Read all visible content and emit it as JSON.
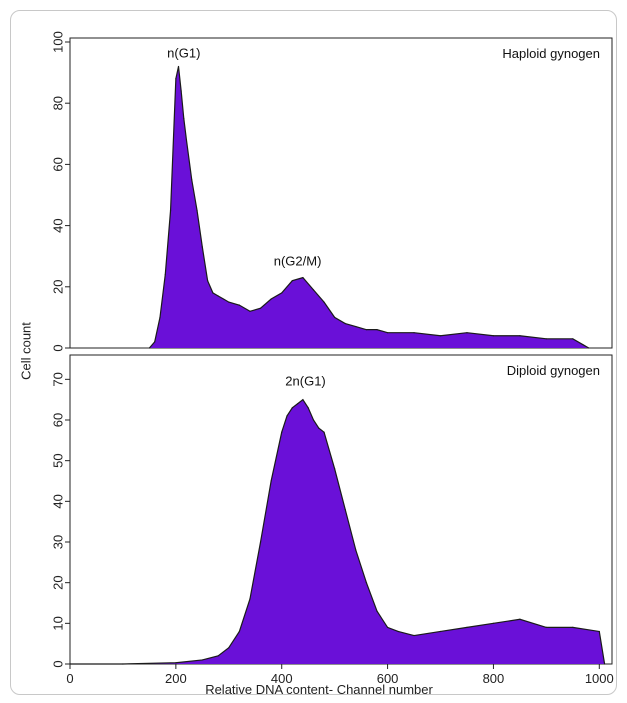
{
  "chart_data": [
    {
      "type": "area",
      "panel": "top",
      "panel_label": "Haploid gynogen",
      "ylabel": "",
      "xlabel": "",
      "xlim": [
        0,
        1024
      ],
      "ylim": [
        0,
        100
      ],
      "yticks": [
        0,
        20,
        40,
        60,
        80,
        100
      ],
      "fill_color": "#6a10d8",
      "outline_color": "#1a1a1a",
      "annotations": [
        {
          "text": "n(G1)",
          "x": 215,
          "y": 93
        },
        {
          "text": "n(G2/M)",
          "x": 430,
          "y": 25
        }
      ],
      "x": [
        150,
        160,
        170,
        180,
        190,
        200,
        205,
        210,
        215,
        220,
        230,
        240,
        250,
        260,
        270,
        280,
        290,
        300,
        320,
        340,
        360,
        380,
        400,
        420,
        440,
        460,
        480,
        500,
        520,
        540,
        560,
        580,
        600,
        650,
        700,
        750,
        800,
        850,
        900,
        950,
        970,
        980
      ],
      "values": [
        0,
        2,
        10,
        24,
        45,
        88,
        92,
        84,
        75,
        68,
        55,
        45,
        33,
        22,
        18,
        17,
        16,
        15,
        14,
        12,
        13,
        16,
        18,
        22,
        23,
        19,
        15,
        10,
        8,
        7,
        6,
        6,
        5,
        5,
        4,
        5,
        4,
        4,
        3,
        3,
        1,
        0
      ]
    },
    {
      "type": "area",
      "panel": "bottom",
      "panel_label": "Diploid gynogen",
      "ylabel": "Cell count",
      "xlabel": "Relative DNA content- Channel number",
      "xlim": [
        0,
        1024
      ],
      "ylim": [
        0,
        75
      ],
      "yticks": [
        0,
        10,
        20,
        30,
        40,
        50,
        60,
        70
      ],
      "xticks": [
        0,
        200,
        400,
        600,
        800,
        1000
      ],
      "fill_color": "#6a10d8",
      "outline_color": "#1a1a1a",
      "annotations": [
        {
          "text": "2n(G1)",
          "x": 445,
          "y": 67
        }
      ],
      "x": [
        0,
        100,
        200,
        250,
        280,
        300,
        320,
        340,
        360,
        380,
        400,
        410,
        420,
        430,
        440,
        450,
        460,
        470,
        480,
        500,
        520,
        540,
        560,
        580,
        600,
        620,
        650,
        700,
        750,
        800,
        850,
        900,
        950,
        1000,
        1010
      ],
      "values": [
        0,
        0,
        0.3,
        1,
        2,
        4,
        8,
        16,
        30,
        45,
        57,
        61,
        63,
        64,
        65,
        63,
        60,
        58,
        57,
        48,
        38,
        28,
        20,
        13,
        9,
        8,
        7,
        8,
        9,
        10,
        11,
        9,
        9,
        8,
        0
      ]
    }
  ]
}
